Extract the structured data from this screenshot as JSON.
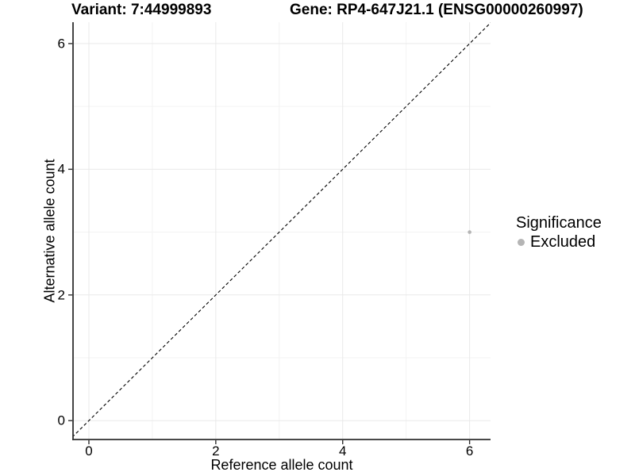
{
  "chart_data": {
    "type": "scatter",
    "titles": [
      "Variant: 7:44999893",
      "Gene: RP4-647J21.1 (ENSG00000260997)"
    ],
    "xlabel": "Reference allele count",
    "ylabel": "Alternative allele count",
    "xlim": [
      -0.25,
      6.33
    ],
    "ylim": [
      -0.3,
      6.34
    ],
    "x_ticks": [
      0,
      2,
      4,
      6
    ],
    "y_ticks": [
      0,
      2,
      4,
      6
    ],
    "x_tick_labels": [
      "0",
      "2",
      "4",
      "6"
    ],
    "y_tick_labels": [
      "0",
      "2",
      "4",
      "6"
    ],
    "minor_gridlines_x": [
      1,
      3,
      5
    ],
    "minor_gridlines_y": [
      1,
      3,
      5
    ],
    "grid": "major+minor",
    "points": [
      {
        "x": 6,
        "y": 3,
        "series": "Excluded"
      }
    ],
    "identity_line": {
      "style": "dashed",
      "from": -0.45,
      "to": 6.5
    },
    "legend": {
      "title": "Significance",
      "position": "right",
      "entries": [
        {
          "label": "Excluded",
          "color": "#b5b5b5"
        }
      ]
    },
    "colors": {
      "point": "#b5b5b5",
      "axis_line": "#2f2f2f",
      "grid_major": "#e9e9e9",
      "grid_minor": "#f3f3f3",
      "identity_line": "#000000",
      "text": "#000000"
    }
  }
}
